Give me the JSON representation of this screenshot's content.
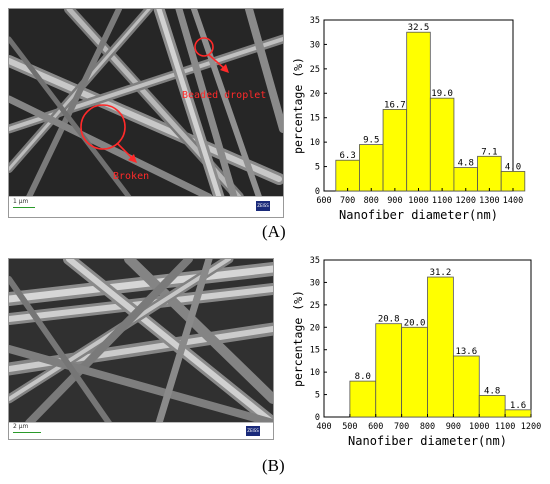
{
  "panel_a": {
    "letter": "(A)",
    "scale_label": "1 μm",
    "logo": "ZEISS",
    "annotations": {
      "droplet": "Beaded droplet",
      "broken": "Broken"
    }
  },
  "panel_b": {
    "letter": "(B)",
    "scale_label": "2 μm",
    "logo": "ZEISS"
  },
  "colors": {
    "bar": "#ffff00",
    "annotation": "#ff2a2a"
  },
  "chart_data": [
    {
      "type": "bar",
      "title": "",
      "xlabel": "Nanofiber diameter(nm)",
      "ylabel": "percentage (%)",
      "bins": [
        [
          650,
          750
        ],
        [
          750,
          850
        ],
        [
          850,
          950
        ],
        [
          950,
          1050
        ],
        [
          1050,
          1150
        ],
        [
          1150,
          1250
        ],
        [
          1250,
          1350
        ],
        [
          1350,
          1450
        ]
      ],
      "values": [
        6.3,
        9.5,
        16.7,
        32.5,
        19.0,
        4.8,
        7.1,
        4.0
      ],
      "value_labels": [
        "6.3",
        "9.5",
        "16.7",
        "32.5",
        "19.0",
        "4.8",
        "7.1",
        "4.0"
      ],
      "xlim": [
        600,
        1400
      ],
      "xticks": [
        "600",
        "700",
        "800",
        "900",
        "1000",
        "1100",
        "1200",
        "1300",
        "1400"
      ],
      "ylim": [
        0,
        35
      ],
      "yticks": [
        "0",
        "5",
        "10",
        "15",
        "20",
        "25",
        "30",
        "35"
      ]
    },
    {
      "type": "bar",
      "title": "",
      "xlabel": "Nanofiber diameter(nm)",
      "ylabel": "percentage (%)",
      "bins": [
        [
          500,
          600
        ],
        [
          600,
          700
        ],
        [
          700,
          800
        ],
        [
          800,
          900
        ],
        [
          900,
          1000
        ],
        [
          1000,
          1100
        ],
        [
          1100,
          1200
        ]
      ],
      "values": [
        8.0,
        20.8,
        20.0,
        31.2,
        13.6,
        4.8,
        1.6
      ],
      "value_labels": [
        "8.0",
        "20.8",
        "20.0",
        "31.2",
        "13.6",
        "4.8",
        "1.6"
      ],
      "xlim": [
        400,
        1200
      ],
      "xticks": [
        "400",
        "500",
        "600",
        "700",
        "800",
        "900",
        "1000",
        "1100",
        "1200"
      ],
      "ylim": [
        0,
        35
      ],
      "yticks": [
        "0",
        "5",
        "10",
        "15",
        "20",
        "25",
        "30",
        "35"
      ]
    }
  ]
}
